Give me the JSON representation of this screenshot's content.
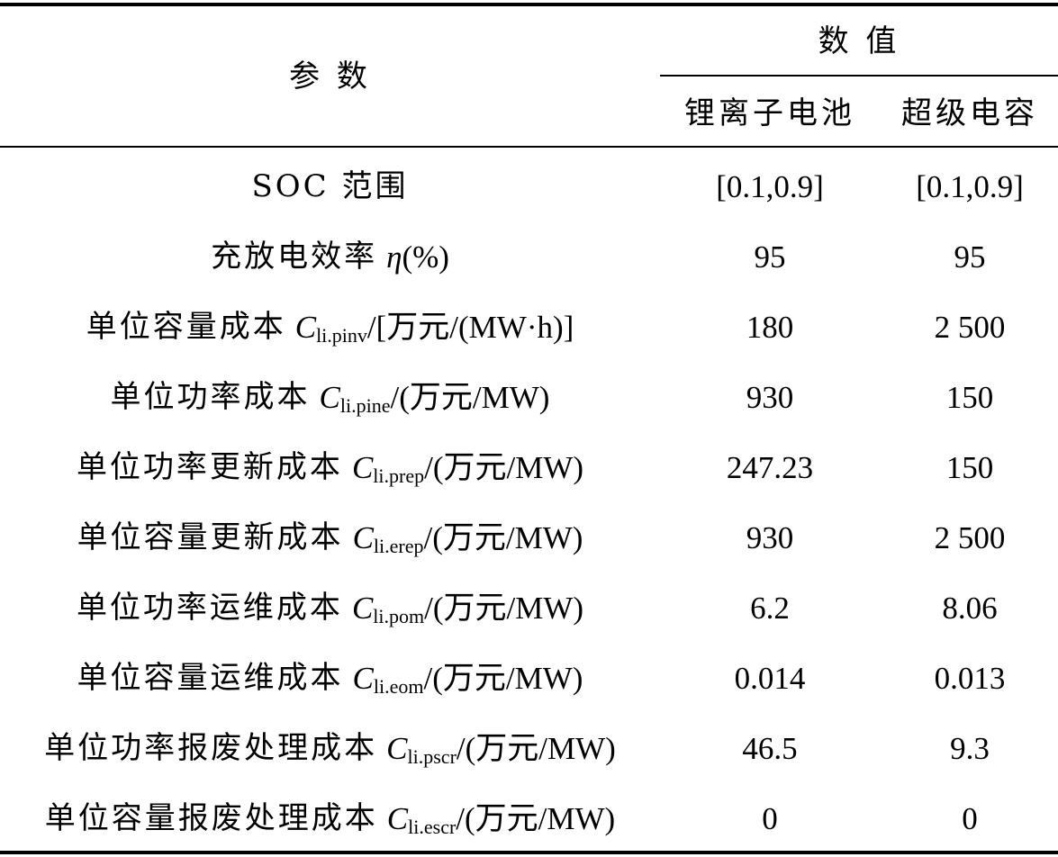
{
  "header": {
    "param_label": "参 数",
    "values_label": "数 值",
    "col_li_ion": "锂离子电池",
    "col_supercap": "超级电容"
  },
  "rows": [
    {
      "name_pre": "SOC 范围",
      "symbol": "",
      "subscript": "",
      "unit": "",
      "li_ion": "[0.1,0.9]",
      "supercap": "[0.1,0.9]"
    },
    {
      "name_pre": "充放电效率",
      "symbol": "η",
      "subscript": "",
      "unit": "(%)",
      "li_ion": "95",
      "supercap": "95"
    },
    {
      "name_pre": "单位容量成本",
      "symbol": "C",
      "subscript": "li.pinv",
      "unit": "/[万元/(MW·h)]",
      "li_ion": "180",
      "supercap": "2 500"
    },
    {
      "name_pre": "单位功率成本",
      "symbol": "C",
      "subscript": "li.pine",
      "unit": "/(万元/MW)",
      "li_ion": "930",
      "supercap": "150"
    },
    {
      "name_pre": "单位功率更新成本",
      "symbol": "C",
      "subscript": "li.prep",
      "unit": "/(万元/MW)",
      "li_ion": "247.23",
      "supercap": "150"
    },
    {
      "name_pre": "单位容量更新成本",
      "symbol": "C",
      "subscript": "li.erep",
      "unit": "/(万元/MW)",
      "li_ion": "930",
      "supercap": "2 500"
    },
    {
      "name_pre": "单位功率运维成本",
      "symbol": "C",
      "subscript": "li.pom",
      "unit": "/(万元/MW)",
      "li_ion": "6.2",
      "supercap": "8.06"
    },
    {
      "name_pre": "单位容量运维成本",
      "symbol": "C",
      "subscript": "li.eom",
      "unit": "/(万元/MW)",
      "li_ion": "0.014",
      "supercap": "0.013"
    },
    {
      "name_pre": "单位功率报废处理成本",
      "symbol": "C",
      "subscript": "li.pscr",
      "unit": "/(万元/MW)",
      "li_ion": "46.5",
      "supercap": "9.3"
    },
    {
      "name_pre": "单位容量报废处理成本",
      "symbol": "C",
      "subscript": "li.escr",
      "unit": "/(万元/MW)",
      "li_ion": "0",
      "supercap": "0"
    }
  ]
}
